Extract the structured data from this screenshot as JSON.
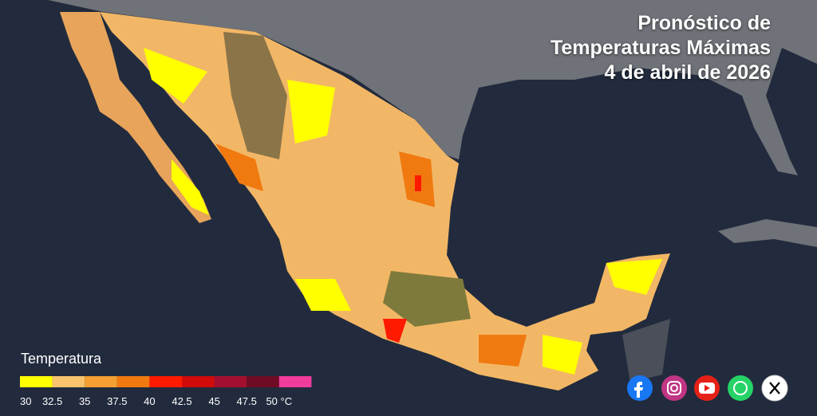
{
  "title": [
    "Pronóstico de",
    "Temperaturas Máximas",
    "4 de abril de 2026"
  ],
  "legend": {
    "title": "Temperatura",
    "labels": [
      "30",
      "32.5",
      "35",
      "37.5",
      "40",
      "42.5",
      "45",
      "47.5",
      "50 °C"
    ],
    "colors": [
      "#ffff00",
      "#f7c36c",
      "#f5a033",
      "#f07a10",
      "#ff1a00",
      "#d10a0a",
      "#a3102f",
      "#6e0b25",
      "#f03c9a"
    ]
  }
}
